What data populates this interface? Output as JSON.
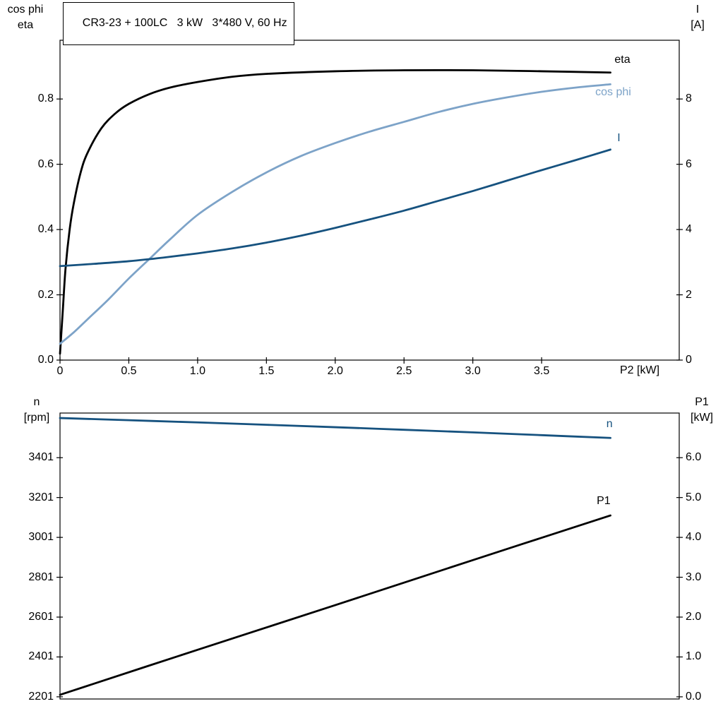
{
  "chart_data": [
    {
      "type": "line",
      "title": "CR3-23 + 100LC   3 kW   3*480 V, 60 Hz",
      "xlabel": "P2 [kW]",
      "ylabel_left_lines": [
        "cos phi",
        "eta"
      ],
      "ylabel_right_lines": [
        "I",
        "[A]"
      ],
      "xlim": [
        0,
        4.5
      ],
      "ylim_left": [
        0,
        0.98
      ],
      "ylim_right": [
        0,
        9.8
      ],
      "xticks": [
        0,
        0.5,
        1,
        1.5,
        2,
        2.5,
        3,
        3.5
      ],
      "xtick_labels": [
        "0",
        "0.5",
        "1.0",
        "1.5",
        "2.0",
        "2.5",
        "3.0",
        "3.5"
      ],
      "yticks_left": [
        0,
        0.2,
        0.4,
        0.6,
        0.8
      ],
      "ytick_left_labels": [
        "0.0",
        "0.2",
        "0.4",
        "0.6",
        "0.8"
      ],
      "yticks_right": [
        0,
        2,
        4,
        6,
        8
      ],
      "ytick_right_labels": [
        "0",
        "2",
        "4",
        "6",
        "8"
      ],
      "grid": false,
      "legend_position": "curve-end-labels",
      "series": [
        {
          "name": "eta",
          "axis": "left",
          "color": "#000000",
          "label_x": 4.03,
          "label_y": 0.92,
          "x": [
            0,
            0.02,
            0.04,
            0.07,
            0.1,
            0.15,
            0.2,
            0.3,
            0.4,
            0.5,
            0.65,
            0.8,
            1.0,
            1.25,
            1.5,
            2.0,
            2.5,
            3.0,
            3.5,
            4.0
          ],
          "y": [
            0.02,
            0.15,
            0.28,
            0.4,
            0.48,
            0.575,
            0.635,
            0.71,
            0.755,
            0.785,
            0.815,
            0.835,
            0.852,
            0.868,
            0.877,
            0.885,
            0.888,
            0.888,
            0.885,
            0.881
          ]
        },
        {
          "name": "cos phi",
          "axis": "left",
          "color": "#7da3c8",
          "label_x": 3.89,
          "label_y": 0.82,
          "x": [
            0,
            0.1,
            0.2,
            0.35,
            0.5,
            0.65,
            0.8,
            1.0,
            1.25,
            1.5,
            1.75,
            2.0,
            2.25,
            2.5,
            2.75,
            3.0,
            3.25,
            3.5,
            3.75,
            4.0
          ],
          "y": [
            0.05,
            0.085,
            0.125,
            0.185,
            0.25,
            0.31,
            0.37,
            0.445,
            0.515,
            0.575,
            0.625,
            0.665,
            0.7,
            0.73,
            0.76,
            0.785,
            0.805,
            0.822,
            0.835,
            0.845
          ]
        },
        {
          "name": "I",
          "axis": "right",
          "color": "#16527f",
          "label_x": 4.05,
          "label_y": 6.79,
          "x": [
            0,
            0.25,
            0.5,
            0.75,
            1.0,
            1.25,
            1.5,
            1.75,
            2.0,
            2.25,
            2.5,
            2.75,
            3.0,
            3.25,
            3.5,
            3.75,
            4.0
          ],
          "y": [
            2.88,
            2.95,
            3.03,
            3.14,
            3.27,
            3.42,
            3.6,
            3.81,
            4.05,
            4.31,
            4.58,
            4.88,
            5.18,
            5.5,
            5.82,
            6.13,
            6.45
          ]
        }
      ]
    },
    {
      "type": "line",
      "title": "",
      "xlabel": "",
      "ylabel_left_lines": [
        "n",
        "[rpm]"
      ],
      "ylabel_right_lines": [
        "P1",
        "[kW]"
      ],
      "xlim": [
        0,
        4.5
      ],
      "ylim_left": [
        2190,
        3625
      ],
      "ylim_right": [
        -0.055,
        7.12
      ],
      "xticks": [],
      "xtick_labels": [],
      "yticks_left": [
        3401,
        3201,
        3001,
        2801,
        2601,
        2401,
        2201
      ],
      "ytick_left_labels": [
        "3401",
        "3201",
        "3001",
        "2801",
        "2601",
        "2401",
        "2201"
      ],
      "yticks_right": [
        6,
        5,
        4,
        3,
        2,
        1,
        0
      ],
      "ytick_right_labels": [
        "6.0",
        "5.0",
        "4.0",
        "3.0",
        "2.0",
        "1.0",
        "0.0"
      ],
      "grid": false,
      "legend_position": "curve-end-labels",
      "series": [
        {
          "name": "n",
          "axis": "left",
          "color": "#16527f",
          "label_x": 3.97,
          "label_y": 3568,
          "x": [
            0,
            0.5,
            1,
            1.5,
            2,
            2.5,
            3,
            3.5,
            4
          ],
          "y": [
            3600,
            3589,
            3578,
            3566,
            3554,
            3541,
            3528,
            3514,
            3500
          ]
        },
        {
          "name": "P1",
          "axis": "right",
          "color": "#000000",
          "label_x": 3.9,
          "label_y": 4.9,
          "x": [
            0,
            1,
            2,
            3,
            4
          ],
          "y": [
            0.05,
            1.18,
            2.3,
            3.43,
            4.55
          ]
        }
      ]
    }
  ],
  "colors": {
    "frame": "#000000",
    "dark_blue": "#16527f",
    "light_blue": "#7da3c8",
    "black": "#000000",
    "background": "#ffffff"
  }
}
